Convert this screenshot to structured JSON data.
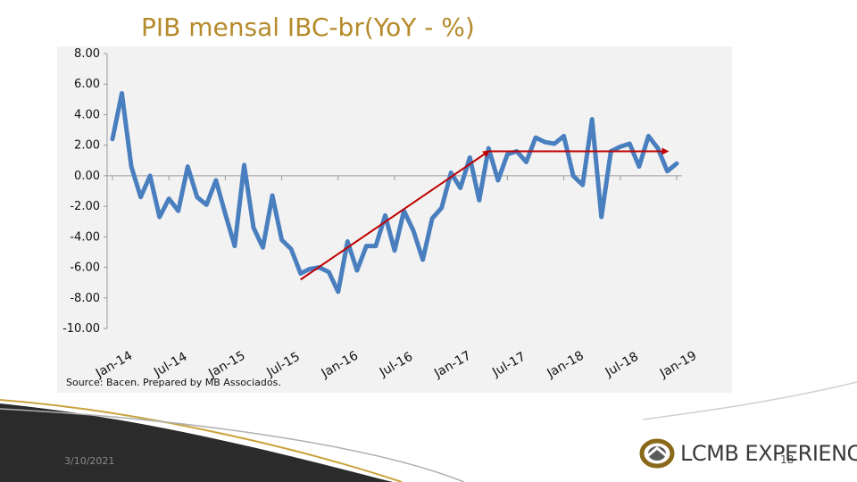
{
  "slide": {
    "title": "PIB mensal IBC-br(YoY - %)",
    "source": "Source: Bacen. Prepared by MB Associados.",
    "date": "3/10/2021",
    "page_number": "18",
    "logo_text": "LCMB EXPERIENCE"
  },
  "colors": {
    "title": "#b58a2a",
    "series": "#4a7fbf",
    "trend": "#c00000",
    "panel": "#f2f2f2"
  },
  "chart_data": {
    "type": "line",
    "ylim": [
      -10,
      8
    ],
    "y_ticks": [
      "8.00",
      "6.00",
      "4.00",
      "2.00",
      "0.00",
      "-2.00",
      "-4.00",
      "-6.00",
      "-8.00",
      "-10.00"
    ],
    "x_tick_labels": [
      "Jan-14",
      "Jul-14",
      "Jan-15",
      "Jul-15",
      "Jan-16",
      "Jul-16",
      "Jan-17",
      "Jul-17",
      "Jan-18",
      "Jul-18",
      "Jan-19"
    ],
    "grid": false,
    "series": [
      {
        "values": [
          2.4,
          5.4,
          0.6,
          -1.4,
          0.0,
          -2.7,
          -1.5,
          -2.3,
          0.6,
          -1.4,
          -1.9,
          -0.3,
          -2.5,
          -4.6,
          0.7,
          -3.4,
          -4.7,
          -1.3,
          -4.2,
          -4.8,
          -6.4,
          -6.1,
          -6.0,
          -6.3,
          -7.6,
          -4.3,
          -6.2,
          -4.6,
          -4.6,
          -2.6,
          -4.9,
          -2.3,
          -3.6,
          -5.5,
          -2.8,
          -2.1,
          0.2,
          -0.8,
          1.2,
          -1.6,
          1.8,
          -0.3,
          1.4,
          1.6,
          0.9,
          2.5,
          2.2,
          2.1,
          2.6,
          0.0,
          -0.6,
          3.7,
          -2.7,
          1.6,
          1.9,
          2.1,
          0.6,
          2.6,
          1.8,
          0.3,
          0.8
        ]
      }
    ],
    "trend_lines": [
      {
        "from": {
          "index": 20,
          "value": -6.8
        },
        "to": {
          "index": 40,
          "value": 1.6
        }
      },
      {
        "from": {
          "index": 40,
          "value": 1.6
        },
        "to": {
          "index": 59,
          "value": 1.6
        }
      }
    ]
  }
}
